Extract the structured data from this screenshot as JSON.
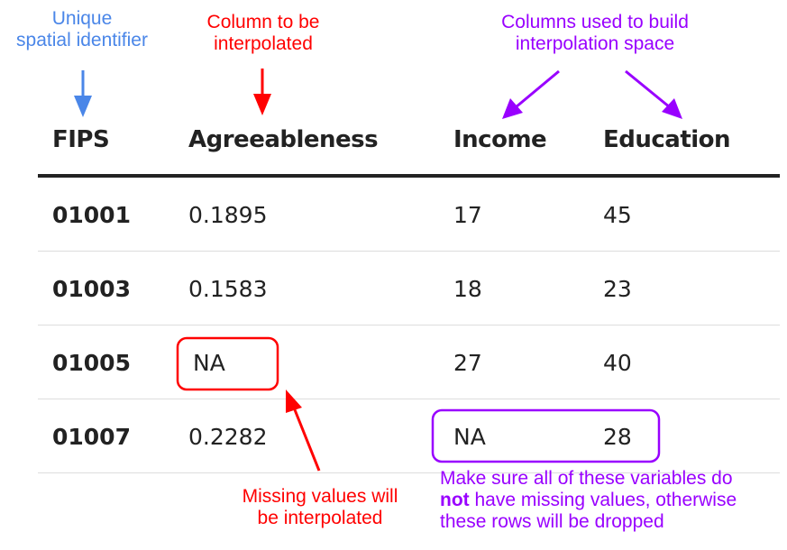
{
  "annotations": {
    "spatial_id": [
      "Unique",
      "spatial identifier"
    ],
    "interpolated_col": [
      "Column to be",
      "interpolated"
    ],
    "space_cols": [
      "Columns used to build",
      "interpolation space"
    ],
    "missing": [
      "Missing values will",
      "be interpolated"
    ],
    "no_missing": {
      "line1": "Make sure all of these variables do",
      "line2_bold": "not",
      "line2_rest": " have missing values, otherwise",
      "line3": "these rows will be dropped"
    }
  },
  "table": {
    "headers": [
      "FIPS",
      "Agreeableness",
      "Income",
      "Education"
    ],
    "rows": [
      [
        "01001",
        "0.1895",
        "17",
        "45"
      ],
      [
        "01003",
        "0.1583",
        "18",
        "23"
      ],
      [
        "01005",
        "NA",
        "27",
        "40"
      ],
      [
        "01007",
        "0.2282",
        "NA",
        "28"
      ]
    ]
  },
  "colors": {
    "blue": "#4a86e8",
    "red": "#ff0000",
    "purple": "#9900ff",
    "text": "#222222",
    "rule_dark": "#222222",
    "rule_light": "#dddddd"
  }
}
